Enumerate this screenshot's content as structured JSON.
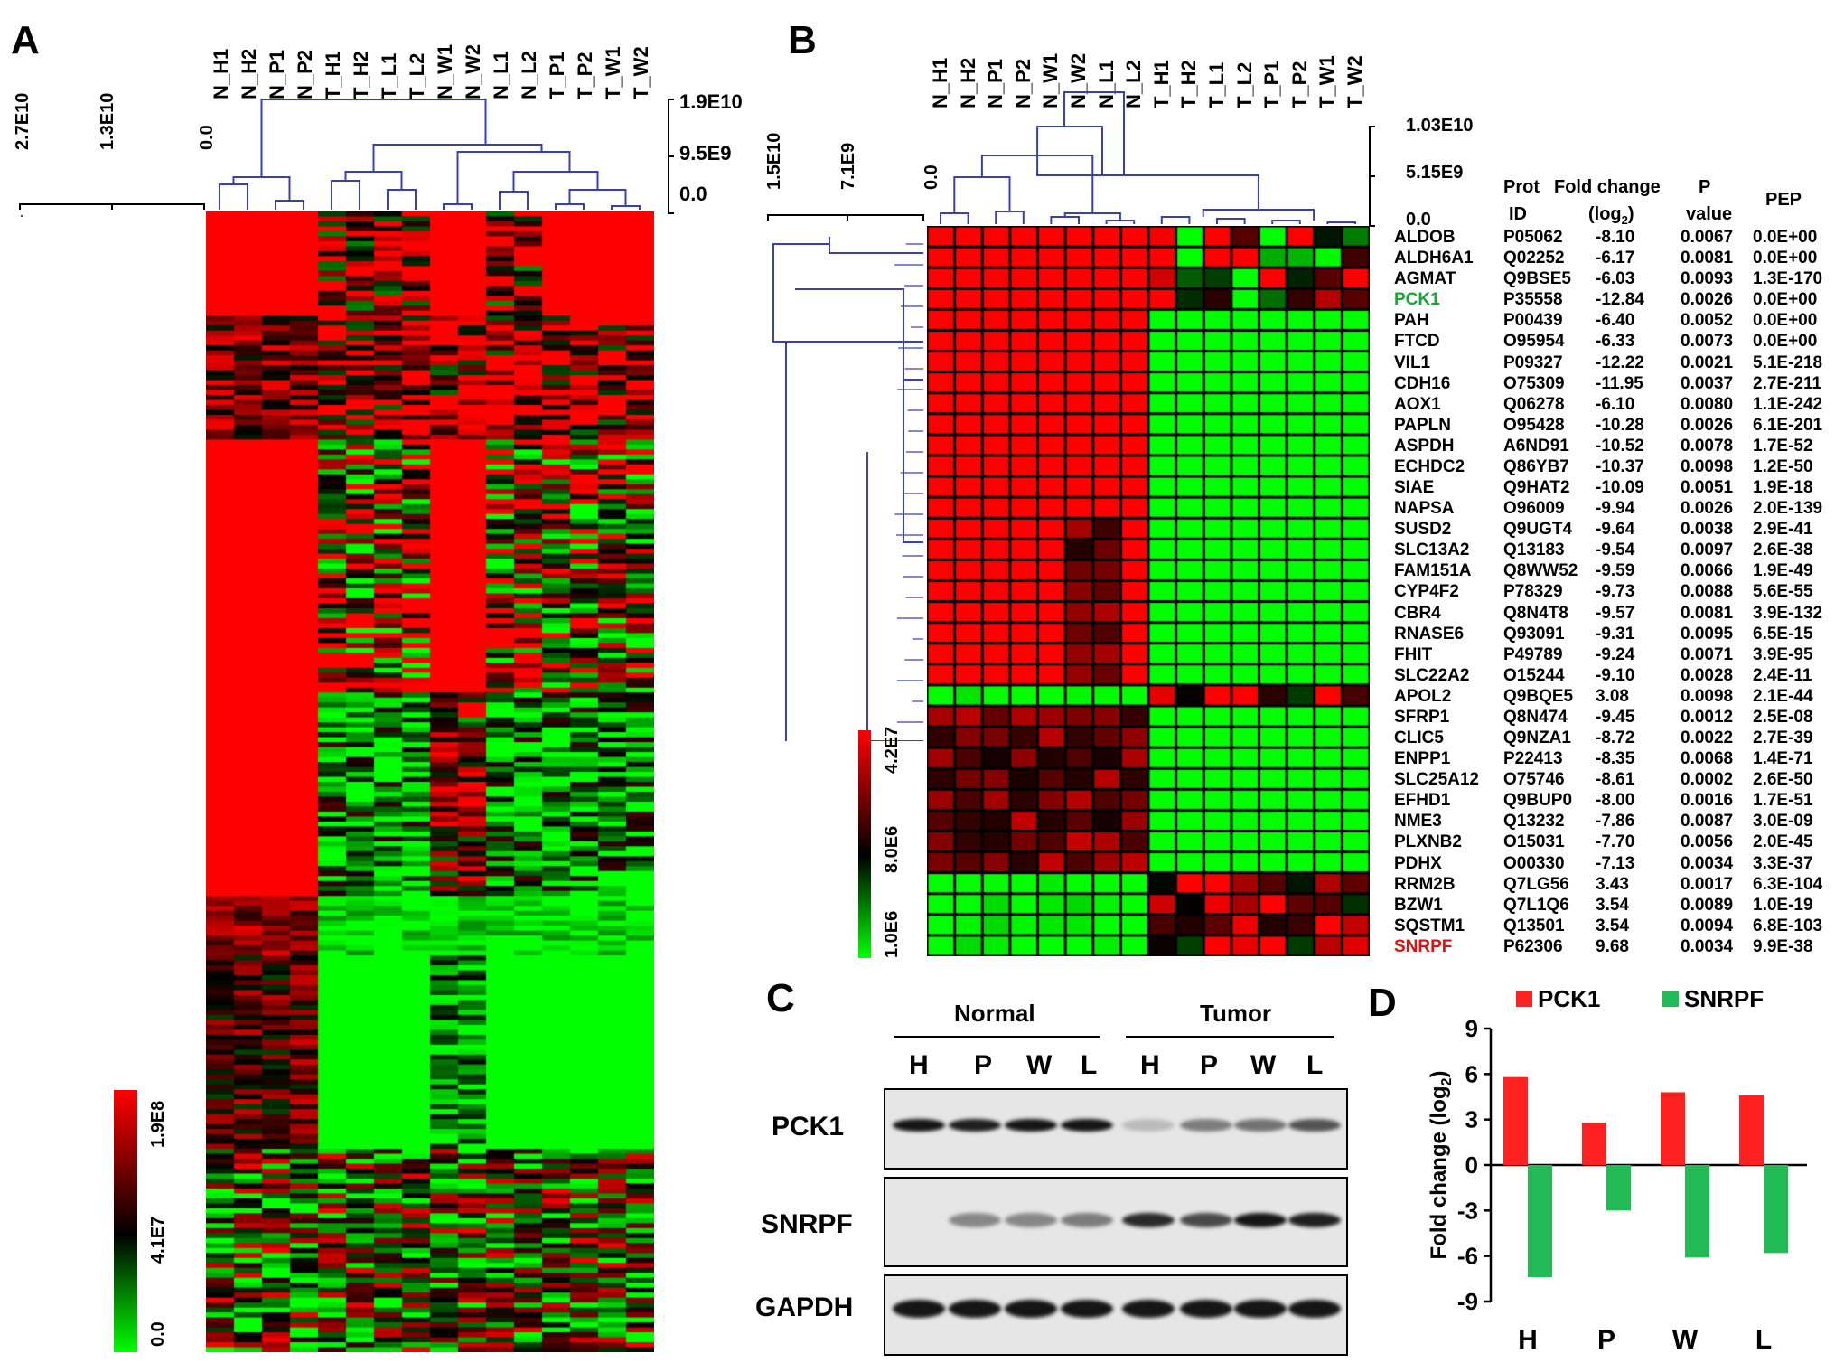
{
  "colors": {
    "high": "#ff0000",
    "low": "#00ff00",
    "mid": "#000000",
    "dendro": "#3a3fb5",
    "pck1": "#19a33a",
    "snrpf": "#e01010",
    "barA": "#ff2020",
    "barB": "#22bb55"
  },
  "panelA": {
    "letter": "A",
    "samples": [
      "N_H1",
      "N_H2",
      "N_P1",
      "N_P2",
      "T_H1",
      "T_H2",
      "T_L1",
      "T_L2",
      "N_W1",
      "N_W2",
      "N_L1",
      "N_L2",
      "T_P1",
      "T_P2",
      "T_W1",
      "T_W2"
    ],
    "col_scale": [
      "1.9E10",
      "9.5E9",
      "0.0"
    ],
    "row_scale": [
      "2.7E10",
      "1.3E10",
      "0.0"
    ],
    "legend": [
      "1.9E8",
      "4.1E7",
      "0.0"
    ]
  },
  "panelB": {
    "letter": "B",
    "samples": [
      "N_H1",
      "N_H2",
      "N_P1",
      "N_P2",
      "N_W1",
      "N_W2",
      "N_L1",
      "N_L2",
      "T_H1",
      "T_H2",
      "T_L1",
      "T_L2",
      "T_P1",
      "T_P2",
      "T_W1",
      "T_W2"
    ],
    "col_scale": [
      "1.03E10",
      "5.15E9",
      "0.0"
    ],
    "row_scale": [
      "1.5E10",
      "7.1E9",
      "0.0"
    ],
    "legend": [
      "4.2E7",
      "8.0E6",
      "1.0E6"
    ],
    "headers": {
      "prot": "Prot",
      "id": "ID",
      "fold": "Fold change",
      "log": "(log",
      "sub": "2",
      "close": ")",
      "p": "P",
      "value": "value",
      "pep": "PEP"
    },
    "rows": [
      {
        "gene": "ALDOB",
        "id": "P05062",
        "fc": "-8.10",
        "p": "0.0067",
        "pep": "0.0E+00"
      },
      {
        "gene": "ALDH6A1",
        "id": "Q02252",
        "fc": "-6.17",
        "p": "0.0081",
        "pep": "0.0E+00"
      },
      {
        "gene": "AGMAT",
        "id": "Q9BSE5",
        "fc": "-6.03",
        "p": "0.0093",
        "pep": "1.3E-170"
      },
      {
        "gene": "PCK1",
        "id": "P35558",
        "fc": "-12.84",
        "p": "0.0026",
        "pep": "0.0E+00"
      },
      {
        "gene": "PAH",
        "id": "P00439",
        "fc": "-6.40",
        "p": "0.0052",
        "pep": "0.0E+00"
      },
      {
        "gene": "FTCD",
        "id": "O95954",
        "fc": "-6.33",
        "p": "0.0073",
        "pep": "0.0E+00"
      },
      {
        "gene": "VIL1",
        "id": "P09327",
        "fc": "-12.22",
        "p": "0.0021",
        "pep": "5.1E-218"
      },
      {
        "gene": "CDH16",
        "id": "O75309",
        "fc": "-11.95",
        "p": "0.0037",
        "pep": "2.7E-211"
      },
      {
        "gene": "AOX1",
        "id": "Q06278",
        "fc": "-6.10",
        "p": "0.0080",
        "pep": "1.1E-242"
      },
      {
        "gene": "PAPLN",
        "id": "O95428",
        "fc": "-10.28",
        "p": "0.0026",
        "pep": "6.1E-201"
      },
      {
        "gene": "ASPDH",
        "id": "A6ND91",
        "fc": "-10.52",
        "p": "0.0078",
        "pep": "1.7E-52"
      },
      {
        "gene": "ECHDC2",
        "id": "Q86YB7",
        "fc": "-10.37",
        "p": "0.0098",
        "pep": "1.2E-50"
      },
      {
        "gene": "SIAE",
        "id": "Q9HAT2",
        "fc": "-10.09",
        "p": "0.0051",
        "pep": "1.9E-18"
      },
      {
        "gene": "NAPSA",
        "id": "O96009",
        "fc": "-9.94",
        "p": "0.0026",
        "pep": "2.0E-139"
      },
      {
        "gene": "SUSD2",
        "id": "Q9UGT4",
        "fc": "-9.64",
        "p": "0.0038",
        "pep": "2.9E-41"
      },
      {
        "gene": "SLC13A2",
        "id": "Q13183",
        "fc": "-9.54",
        "p": "0.0097",
        "pep": "2.6E-38"
      },
      {
        "gene": "FAM151A",
        "id": "Q8WW52",
        "fc": "-9.59",
        "p": "0.0066",
        "pep": "1.9E-49"
      },
      {
        "gene": "CYP4F2",
        "id": "P78329",
        "fc": "-9.73",
        "p": "0.0088",
        "pep": "5.6E-55"
      },
      {
        "gene": "CBR4",
        "id": "Q8N4T8",
        "fc": "-9.57",
        "p": "0.0081",
        "pep": "3.9E-132"
      },
      {
        "gene": "RNASE6",
        "id": "Q93091",
        "fc": "-9.31",
        "p": "0.0095",
        "pep": "6.5E-15"
      },
      {
        "gene": "FHIT",
        "id": "P49789",
        "fc": "-9.24",
        "p": "0.0071",
        "pep": "3.9E-95"
      },
      {
        "gene": "SLC22A2",
        "id": "O15244",
        "fc": "-9.10",
        "p": "0.0028",
        "pep": "2.4E-11"
      },
      {
        "gene": "APOL2",
        "id": "Q9BQE5",
        "fc": "3.08",
        "p": "0.0098",
        "pep": "2.1E-44"
      },
      {
        "gene": "SFRP1",
        "id": "Q8N474",
        "fc": "-9.45",
        "p": "0.0012",
        "pep": "2.5E-08"
      },
      {
        "gene": "CLIC5",
        "id": "Q9NZA1",
        "fc": "-8.72",
        "p": "0.0022",
        "pep": "2.7E-39"
      },
      {
        "gene": "ENPP1",
        "id": "P22413",
        "fc": "-8.35",
        "p": "0.0068",
        "pep": "1.4E-71"
      },
      {
        "gene": "SLC25A12",
        "id": "O75746",
        "fc": "-8.61",
        "p": "0.0002",
        "pep": "2.6E-50"
      },
      {
        "gene": "EFHD1",
        "id": "Q9BUP0",
        "fc": "-8.00",
        "p": "0.0016",
        "pep": "1.7E-51"
      },
      {
        "gene": "NME3",
        "id": "Q13232",
        "fc": "-7.86",
        "p": "0.0087",
        "pep": "3.0E-09"
      },
      {
        "gene": "PLXNB2",
        "id": "O15031",
        "fc": "-7.70",
        "p": "0.0056",
        "pep": "2.0E-45"
      },
      {
        "gene": "PDHX",
        "id": "O00330",
        "fc": "-7.13",
        "p": "0.0034",
        "pep": "3.3E-37"
      },
      {
        "gene": "RRM2B",
        "id": "Q7LG56",
        "fc": "3.43",
        "p": "0.0017",
        "pep": "6.3E-104"
      },
      {
        "gene": "BZW1",
        "id": "Q7L1Q6",
        "fc": "3.54",
        "p": "0.0089",
        "pep": "1.0E-19"
      },
      {
        "gene": "SQSTM1",
        "id": "Q13501",
        "fc": "3.54",
        "p": "0.0094",
        "pep": "6.8E-103"
      },
      {
        "gene": "SNRPF",
        "id": "P62306",
        "fc": "9.68",
        "p": "0.0034",
        "pep": "9.9E-38"
      }
    ]
  },
  "panelC": {
    "letter": "C",
    "groups": [
      "Normal",
      "Tumor"
    ],
    "lanes": [
      "H",
      "P",
      "W",
      "L",
      "H",
      "P",
      "W",
      "L"
    ],
    "blots": [
      "PCK1",
      "SNRPF",
      "GAPDH"
    ]
  },
  "chart_data": {
    "type": "bar",
    "title": "",
    "categories": [
      "H",
      "P",
      "W",
      "L"
    ],
    "series": [
      {
        "name": "PCK1",
        "values": [
          5.8,
          2.8,
          4.8,
          4.6
        ]
      },
      {
        "name": "SNRPF",
        "values": [
          -7.4,
          -3.0,
          -6.1,
          -5.8
        ]
      }
    ],
    "ylabel": "Fold change (log",
    "ylabel_sub": "2",
    "ylabel_end": ")",
    "ylim": [
      -9,
      9
    ],
    "yticks": [
      "9",
      "6",
      "3",
      "0",
      "-3",
      "-6",
      "-9"
    ],
    "legend_position": "top",
    "letter": "D"
  }
}
